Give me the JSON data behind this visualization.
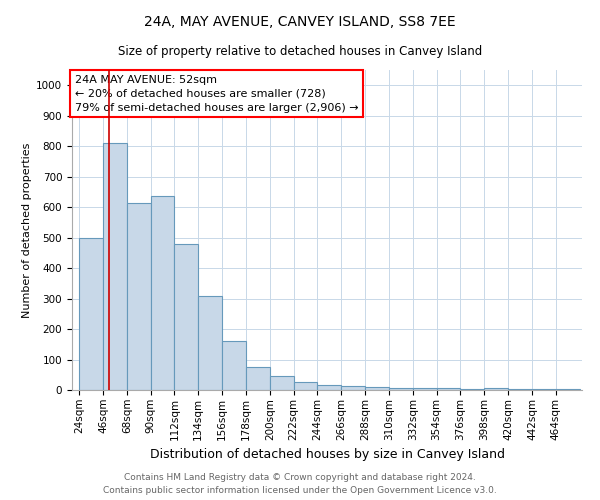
{
  "title": "24A, MAY AVENUE, CANVEY ISLAND, SS8 7EE",
  "subtitle": "Size of property relative to detached houses in Canvey Island",
  "xlabel": "Distribution of detached houses by size in Canvey Island",
  "ylabel": "Number of detached properties",
  "annotation_line1": "24A MAY AVENUE: 52sqm",
  "annotation_line2": "← 20% of detached houses are smaller (728)",
  "annotation_line3": "79% of semi-detached houses are larger (2,906) →",
  "footer_line1": "Contains HM Land Registry data © Crown copyright and database right 2024.",
  "footer_line2": "Contains public sector information licensed under the Open Government Licence v3.0.",
  "bar_color": "#c8d8e8",
  "bar_edge_color": "#6699bb",
  "marker_line_color": "#cc0000",
  "categories": [
    "24sqm",
    "46sqm",
    "68sqm",
    "90sqm",
    "112sqm",
    "134sqm",
    "156sqm",
    "178sqm",
    "200sqm",
    "222sqm",
    "244sqm",
    "266sqm",
    "288sqm",
    "310sqm",
    "332sqm",
    "354sqm",
    "376sqm",
    "398sqm",
    "420sqm",
    "442sqm",
    "464sqm"
  ],
  "values": [
    500,
    810,
    615,
    635,
    478,
    308,
    162,
    77,
    45,
    25,
    18,
    12,
    11,
    8,
    6,
    5,
    4,
    8,
    2,
    2,
    2
  ],
  "ylim": [
    0,
    1050
  ],
  "yticks": [
    0,
    100,
    200,
    300,
    400,
    500,
    600,
    700,
    800,
    900,
    1000
  ],
  "background_color": "#ffffff",
  "grid_color": "#c8d8e8",
  "title_fontsize": 10,
  "subtitle_fontsize": 8.5,
  "xlabel_fontsize": 9,
  "ylabel_fontsize": 8,
  "tick_fontsize": 7.5,
  "footer_fontsize": 6.5
}
